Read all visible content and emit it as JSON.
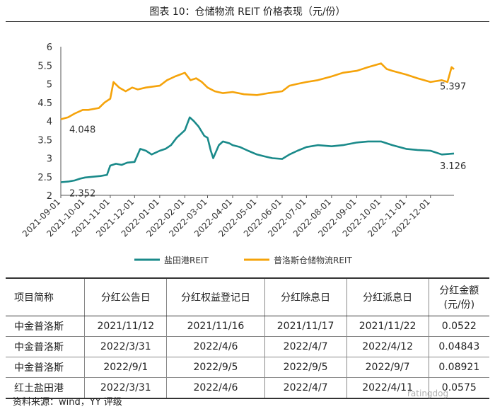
{
  "title": "图表 10：仓储物流 REIT 价格表现（元/份）",
  "chart_data": {
    "type": "line",
    "title": "图表 10：仓储物流 REIT 价格表现（元/份）",
    "ylim": [
      2,
      6
    ],
    "y_ticks": [
      "2",
      "2.5",
      "3",
      "3.5",
      "4",
      "4.5",
      "5",
      "5.5",
      "6"
    ],
    "x_ticks": [
      "2021-09-01",
      "2021-10-01",
      "2021-11-01",
      "2021-12-01",
      "2022-01-01",
      "2022-02-01",
      "2022-03-01",
      "2022-04-01",
      "2022-05-01",
      "2022-06-01",
      "2022-07-01",
      "2022-08-01",
      "2022-09-01",
      "2022-10-01",
      "2022-11-01",
      "2022-12-01"
    ],
    "x_start": "2021-09-01",
    "x_end": "2022-12-30",
    "series": [
      {
        "name": "盐田港REIT",
        "color": "#1a8a8a",
        "points": [
          [
            "2021-09-01",
            2.352
          ],
          [
            "2021-09-10",
            2.37
          ],
          [
            "2021-09-18",
            2.4
          ],
          [
            "2021-09-25",
            2.45
          ],
          [
            "2021-10-01",
            2.48
          ],
          [
            "2021-10-10",
            2.5
          ],
          [
            "2021-10-20",
            2.52
          ],
          [
            "2021-10-28",
            2.55
          ],
          [
            "2021-11-01",
            2.8
          ],
          [
            "2021-11-08",
            2.85
          ],
          [
            "2021-11-15",
            2.82
          ],
          [
            "2021-11-22",
            2.88
          ],
          [
            "2021-12-01",
            2.9
          ],
          [
            "2021-12-08",
            3.25
          ],
          [
            "2021-12-15",
            3.2
          ],
          [
            "2021-12-22",
            3.1
          ],
          [
            "2022-01-01",
            3.2
          ],
          [
            "2022-01-08",
            3.25
          ],
          [
            "2022-01-15",
            3.35
          ],
          [
            "2022-01-22",
            3.55
          ],
          [
            "2022-02-01",
            3.75
          ],
          [
            "2022-02-07",
            4.1
          ],
          [
            "2022-02-12",
            4.0
          ],
          [
            "2022-02-18",
            3.85
          ],
          [
            "2022-02-25",
            3.6
          ],
          [
            "2022-03-01",
            3.55
          ],
          [
            "2022-03-05",
            3.2
          ],
          [
            "2022-03-08",
            3.0
          ],
          [
            "2022-03-15",
            3.35
          ],
          [
            "2022-03-20",
            3.45
          ],
          [
            "2022-03-28",
            3.4
          ],
          [
            "2022-04-01",
            3.35
          ],
          [
            "2022-04-10",
            3.3
          ],
          [
            "2022-04-20",
            3.2
          ],
          [
            "2022-05-01",
            3.1
          ],
          [
            "2022-05-10",
            3.05
          ],
          [
            "2022-05-20",
            3.0
          ],
          [
            "2022-06-01",
            2.98
          ],
          [
            "2022-06-10",
            3.1
          ],
          [
            "2022-06-20",
            3.2
          ],
          [
            "2022-07-01",
            3.3
          ],
          [
            "2022-07-15",
            3.35
          ],
          [
            "2022-08-01",
            3.32
          ],
          [
            "2022-08-15",
            3.35
          ],
          [
            "2022-09-01",
            3.42
          ],
          [
            "2022-09-15",
            3.45
          ],
          [
            "2022-10-01",
            3.45
          ],
          [
            "2022-10-15",
            3.35
          ],
          [
            "2022-11-01",
            3.25
          ],
          [
            "2022-11-15",
            3.22
          ],
          [
            "2022-12-01",
            3.2
          ],
          [
            "2022-12-15",
            3.1
          ],
          [
            "2022-12-30",
            3.126
          ]
        ],
        "end_label": "3.126",
        "start_label": "2.352"
      },
      {
        "name": "普洛斯仓储物流REIT",
        "color": "#f5a30a",
        "points": [
          [
            "2021-09-01",
            4.048
          ],
          [
            "2021-09-10",
            4.1
          ],
          [
            "2021-09-18",
            4.2
          ],
          [
            "2021-09-28",
            4.3
          ],
          [
            "2021-10-05",
            4.3
          ],
          [
            "2021-10-18",
            4.35
          ],
          [
            "2021-10-25",
            4.5
          ],
          [
            "2021-11-01",
            4.6
          ],
          [
            "2021-11-05",
            5.05
          ],
          [
            "2021-11-12",
            4.9
          ],
          [
            "2021-11-20",
            4.8
          ],
          [
            "2021-11-28",
            4.9
          ],
          [
            "2021-12-05",
            4.85
          ],
          [
            "2021-12-15",
            4.9
          ],
          [
            "2022-01-01",
            4.95
          ],
          [
            "2022-01-10",
            5.1
          ],
          [
            "2022-01-20",
            5.2
          ],
          [
            "2022-02-01",
            5.3
          ],
          [
            "2022-02-08",
            5.1
          ],
          [
            "2022-02-15",
            5.15
          ],
          [
            "2022-02-22",
            5.05
          ],
          [
            "2022-03-01",
            4.9
          ],
          [
            "2022-03-10",
            4.8
          ],
          [
            "2022-03-20",
            4.75
          ],
          [
            "2022-04-01",
            4.78
          ],
          [
            "2022-04-15",
            4.72
          ],
          [
            "2022-05-01",
            4.7
          ],
          [
            "2022-05-15",
            4.75
          ],
          [
            "2022-06-01",
            4.8
          ],
          [
            "2022-06-10",
            4.95
          ],
          [
            "2022-06-20",
            5.0
          ],
          [
            "2022-07-01",
            5.05
          ],
          [
            "2022-07-15",
            5.1
          ],
          [
            "2022-08-01",
            5.2
          ],
          [
            "2022-08-15",
            5.3
          ],
          [
            "2022-09-01",
            5.35
          ],
          [
            "2022-09-15",
            5.45
          ],
          [
            "2022-10-01",
            5.55
          ],
          [
            "2022-10-08",
            5.4
          ],
          [
            "2022-10-15",
            5.35
          ],
          [
            "2022-11-01",
            5.25
          ],
          [
            "2022-11-15",
            5.15
          ],
          [
            "2022-12-01",
            5.05
          ],
          [
            "2022-12-15",
            5.1
          ],
          [
            "2022-12-22",
            5.05
          ],
          [
            "2022-12-27",
            5.45
          ],
          [
            "2022-12-30",
            5.397
          ]
        ],
        "end_label": "5.397",
        "start_label": "4.048"
      }
    ]
  },
  "table": {
    "headers": [
      "项目简称",
      "分红公告日",
      "分红权益登记日",
      "分红除息日",
      "分红派息日",
      "分红金额\n(元/份)"
    ],
    "rows": [
      [
        "中金普洛斯",
        "2021/11/12",
        "2021/11/16",
        "2021/11/17",
        "2021/11/22",
        "0.0522"
      ],
      [
        "中金普洛斯",
        "2022/3/31",
        "2022/4/6",
        "2022/4/7",
        "2022/4/12",
        "0.04843"
      ],
      [
        "中金普洛斯",
        "2022/9/1",
        "2022/9/5",
        "2022/9/5",
        "2022/9/7",
        "0.08921"
      ],
      [
        "红土盐田港",
        "2022/3/31",
        "2022/4/6",
        "2022/4/7",
        "2022/4/11",
        "0.0575"
      ]
    ]
  },
  "source": "资料来源：wind，YY 评级",
  "watermark": "ratingdog"
}
